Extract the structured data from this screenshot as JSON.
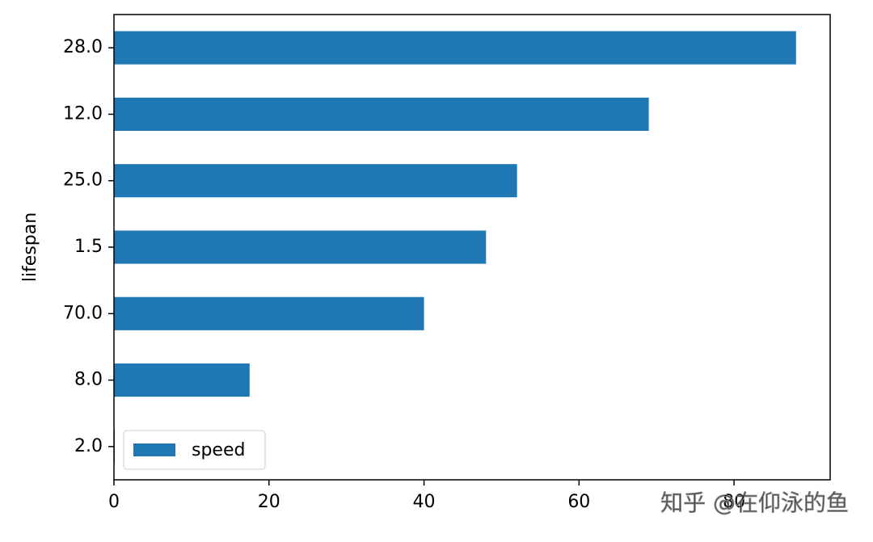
{
  "chart_data": {
    "type": "barh",
    "ylabel": "lifespan",
    "categories": [
      "2.0",
      "8.0",
      "70.0",
      "1.5",
      "25.0",
      "12.0",
      "28.0"
    ],
    "series": [
      {
        "name": "speed",
        "color": "#1f77b4",
        "values": [
          0.1,
          17.5,
          40,
          48,
          52,
          69,
          88
        ]
      }
    ],
    "xlim": [
      0,
      92.4
    ],
    "xticks": [
      0,
      20,
      40,
      60,
      80
    ],
    "legend": "lower left",
    "watermark": "知乎 @在仰泳的鱼"
  }
}
